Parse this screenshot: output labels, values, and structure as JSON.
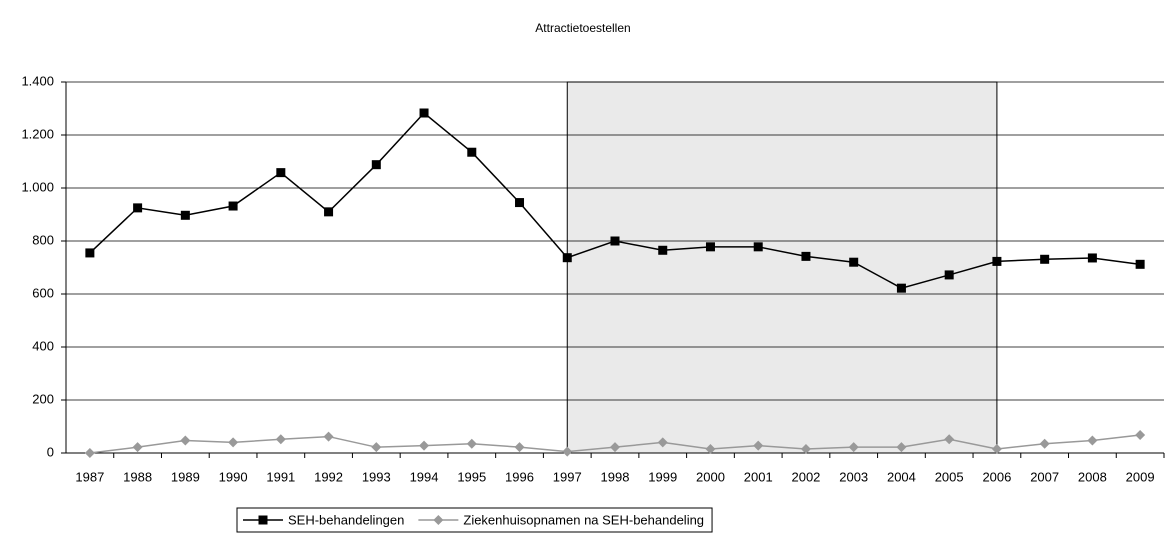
{
  "chart_data": {
    "type": "line",
    "title": "Attractietoestellen",
    "categories": [
      "1987",
      "1988",
      "1989",
      "1990",
      "1991",
      "1992",
      "1993",
      "1994",
      "1995",
      "1996",
      "1997",
      "1998",
      "1999",
      "2000",
      "2001",
      "2002",
      "2003",
      "2004",
      "2005",
      "2006",
      "2007",
      "2008",
      "2009"
    ],
    "series": [
      {
        "name": "SEH-behandelingen",
        "color": "#000000",
        "marker": "square",
        "values": [
          755,
          925,
          897,
          932,
          1058,
          910,
          1088,
          1283,
          1135,
          945,
          737,
          800,
          765,
          778,
          778,
          742,
          720,
          622,
          672,
          723,
          731,
          736,
          712
        ]
      },
      {
        "name": "Ziekenhuisopnamen na SEH-behandeling",
        "color": "#999999",
        "marker": "diamond",
        "values": [
          0,
          22,
          47,
          40,
          52,
          62,
          22,
          28,
          35,
          22,
          5,
          22,
          40,
          15,
          28,
          15,
          22,
          22,
          52,
          15,
          35,
          47,
          68
        ]
      }
    ],
    "ylim": [
      0,
      1400
    ],
    "yticks": [
      0,
      200,
      400,
      600,
      800,
      {
        "value": 1000,
        "label": "1.000"
      },
      {
        "value": 1200,
        "label": "1.200"
      },
      {
        "value": 1400,
        "label": "1.400"
      }
    ],
    "grid": true,
    "shaded_span": [
      "1997",
      "2006"
    ],
    "legend": "bottom"
  }
}
